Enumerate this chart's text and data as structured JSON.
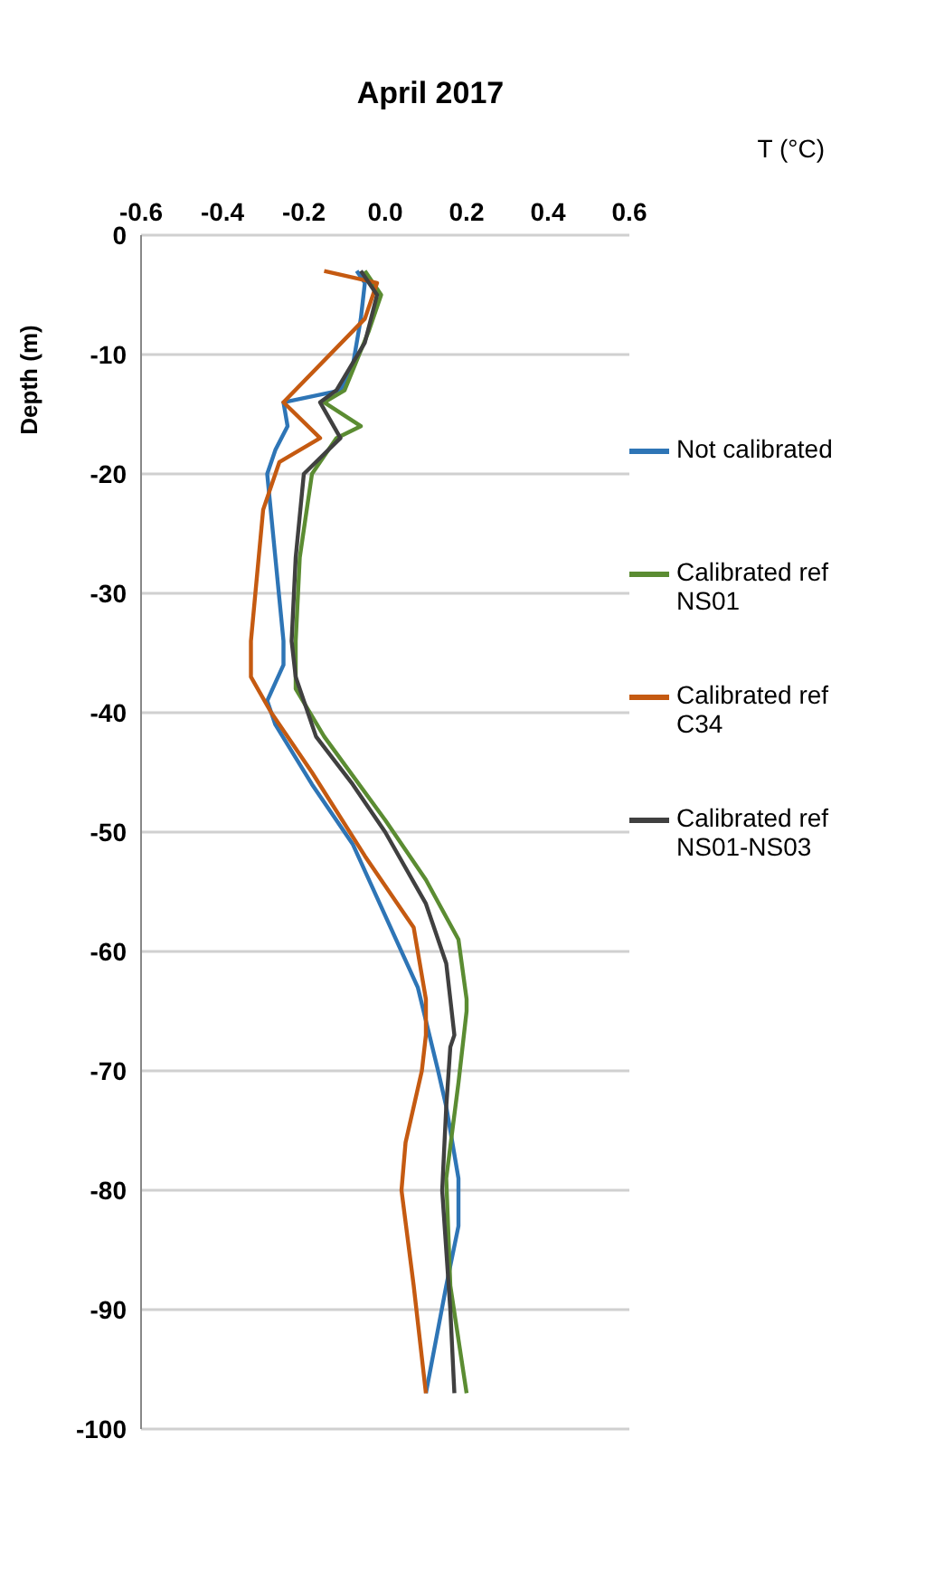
{
  "chart_data": {
    "type": "line",
    "title": "April 2017",
    "xlabel": "T (°C)",
    "ylabel": "Depth (m)",
    "xlim": [
      -0.6,
      0.6
    ],
    "xticks": [
      {
        "value": -0.6,
        "label": "-0.6"
      },
      {
        "value": -0.4,
        "label": "-0.4"
      },
      {
        "value": -0.2,
        "label": "-0.2"
      },
      {
        "value": 0,
        "label": "0.0"
      },
      {
        "value": 0.2,
        "label": "0.2"
      },
      {
        "value": 0.4,
        "label": "0.4"
      },
      {
        "value": 0.6,
        "label": "0.6"
      }
    ],
    "ylim": [
      -100,
      0
    ],
    "yticks": [
      -100,
      -90,
      -80,
      -70,
      -60,
      -50,
      -40,
      -30,
      -20,
      -10,
      0
    ],
    "grid": "y",
    "legend": "right",
    "marker": "none",
    "line_style": "solid",
    "series": [
      {
        "name": "Not calibrated",
        "color": "#2e75b6",
        "x": [
          -0.07,
          -0.05,
          -0.06,
          -0.08,
          -0.11,
          -0.25,
          -0.24,
          -0.27,
          -0.29,
          -0.27,
          -0.25,
          -0.25,
          -0.29,
          -0.27,
          -0.18,
          -0.08,
          0,
          0.08,
          0.13,
          0.15,
          0.18,
          0.18,
          0.15,
          0.1
        ],
        "values": [
          -3,
          -4,
          -7,
          -11,
          -13,
          -14,
          -16,
          -18,
          -20,
          -27,
          -34,
          -36,
          -39,
          -41,
          -46,
          -51,
          -57,
          -63,
          -70,
          -73,
          -79,
          -83,
          -88,
          -97
        ]
      },
      {
        "name": "Calibrated ref NS01",
        "color": "#5b8c32",
        "x": [
          -0.05,
          -0.01,
          -0.04,
          -0.1,
          -0.15,
          -0.06,
          -0.12,
          -0.18,
          -0.21,
          -0.22,
          -0.22,
          -0.15,
          0,
          0.1,
          0.18,
          0.2,
          0.2,
          0.18,
          0.15,
          0.16,
          0.2
        ],
        "values": [
          -3,
          -5,
          -8,
          -13,
          -14,
          -16,
          -17,
          -20,
          -27,
          -34,
          -38,
          -42,
          -49,
          -54,
          -59,
          -64,
          -65,
          -71,
          -79,
          -88,
          -97
        ]
      },
      {
        "name": "Calibrated ref C34",
        "color": "#c55a11",
        "x": [
          -0.15,
          -0.02,
          -0.05,
          -0.25,
          -0.16,
          -0.26,
          -0.3,
          -0.33,
          -0.33,
          -0.28,
          -0.18,
          -0.05,
          0.07,
          0.1,
          0.1,
          0.09,
          0.05,
          0.04,
          0.07,
          0.1
        ],
        "values": [
          -3,
          -4,
          -7,
          -14,
          -17,
          -19,
          -23,
          -34,
          -37,
          -40,
          -45,
          -52,
          -58,
          -64,
          -67,
          -70,
          -76,
          -80,
          -88,
          -97
        ]
      },
      {
        "name": "Calibrated ref NS01-NS03",
        "color": "#404040",
        "x": [
          -0.06,
          -0.02,
          -0.05,
          -0.12,
          -0.16,
          -0.11,
          -0.2,
          -0.22,
          -0.23,
          -0.22,
          -0.17,
          -0.08,
          0,
          0.1,
          0.15,
          0.17,
          0.16,
          0.15,
          0.14,
          0.16,
          0.17
        ],
        "values": [
          -3,
          -5,
          -9,
          -13,
          -14,
          -17,
          -20,
          -27,
          -34,
          -37,
          -42,
          -46,
          -50,
          -56,
          -61,
          -67,
          -68,
          -73,
          -80,
          -90,
          -97
        ]
      }
    ]
  }
}
